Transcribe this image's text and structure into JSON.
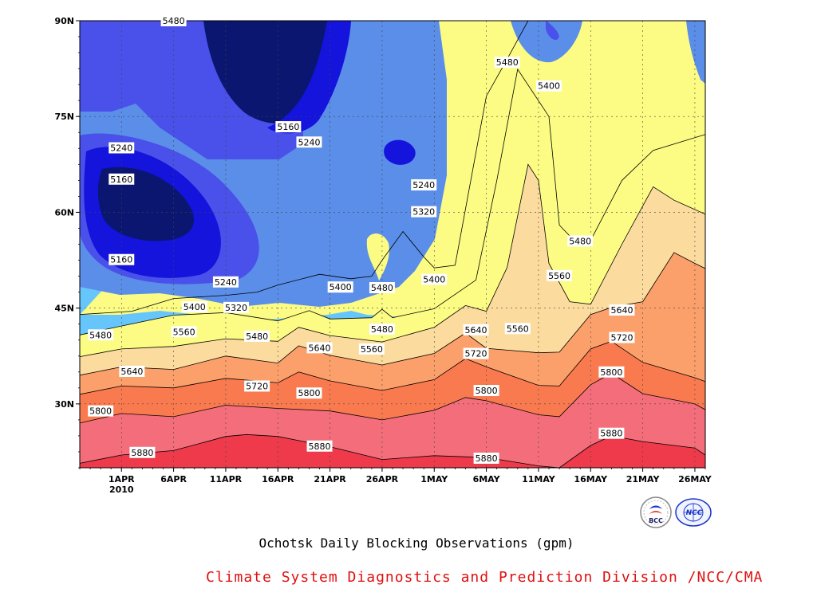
{
  "colors": {
    "bands": [
      "#ee3a4a",
      "#f46d7a",
      "#fa7a4f",
      "#fca06b",
      "#fcdc9e",
      "#fcfc84",
      "#66c6fc",
      "#5a8ee8",
      "#4a50ea",
      "#1414dc",
      "#0a1670"
    ],
    "credit": "#e01010"
  },
  "chart_data": {
    "type": "contour",
    "title": "Ochotsk Daily Blocking Observations (gpm)",
    "xlabel": "",
    "ylabel": "",
    "x_range": [
      "2010-03-28",
      "2010-05-27"
    ],
    "y_range": [
      20,
      90
    ],
    "x_ticks": [
      {
        "date": "2010-04-01",
        "label": "1APR",
        "sublabel": "2010"
      },
      {
        "date": "2010-04-06",
        "label": "6APR"
      },
      {
        "date": "2010-04-11",
        "label": "11APR"
      },
      {
        "date": "2010-04-16",
        "label": "16APR"
      },
      {
        "date": "2010-04-21",
        "label": "21APR"
      },
      {
        "date": "2010-04-26",
        "label": "26APR"
      },
      {
        "date": "2010-05-01",
        "label": "1MAY"
      },
      {
        "date": "2010-05-06",
        "label": "6MAY"
      },
      {
        "date": "2010-05-11",
        "label": "11MAY"
      },
      {
        "date": "2010-05-16",
        "label": "16MAY"
      },
      {
        "date": "2010-05-21",
        "label": "21MAY"
      },
      {
        "date": "2010-05-26",
        "label": "26MAY"
      }
    ],
    "y_ticks": [
      {
        "value": 30,
        "label": "30N"
      },
      {
        "value": 45,
        "label": "45N"
      },
      {
        "value": 60,
        "label": "60N"
      },
      {
        "value": 75,
        "label": "75N"
      },
      {
        "value": 90,
        "label": "90N"
      }
    ],
    "grid": true,
    "contour_levels": [
      5160,
      5240,
      5320,
      5400,
      5480,
      5560,
      5640,
      5720,
      5800,
      5880
    ],
    "contour_lines": [
      {
        "level": 5880,
        "points": [
          [
            "2010-03-28",
            20.7
          ],
          [
            "2010-04-01",
            22
          ],
          [
            "2010-04-06",
            22.7
          ],
          [
            "2010-04-11",
            24.9
          ],
          [
            "2010-04-13",
            25.2
          ],
          [
            "2010-04-16",
            24.9
          ],
          [
            "2010-04-21",
            23.3
          ],
          [
            "2010-04-26",
            21.3
          ],
          [
            "2010-05-01",
            21.9
          ],
          [
            "2010-05-06",
            21.6
          ],
          [
            "2010-05-11",
            20.3
          ],
          [
            "2010-05-13",
            20
          ],
          [
            "2010-05-16",
            23.5
          ],
          [
            "2010-05-18",
            25
          ],
          [
            "2010-05-21",
            24.1
          ],
          [
            "2010-05-26",
            23.1
          ],
          [
            "2010-05-27",
            22
          ]
        ]
      },
      {
        "level": 5800,
        "points": [
          [
            "2010-03-28",
            27
          ],
          [
            "2010-04-01",
            28.5
          ],
          [
            "2010-04-06",
            28
          ],
          [
            "2010-04-11",
            29.8
          ],
          [
            "2010-04-16",
            29.3
          ],
          [
            "2010-04-21",
            28.9
          ],
          [
            "2010-04-26",
            27.5
          ],
          [
            "2010-05-01",
            29
          ],
          [
            "2010-05-04",
            31
          ],
          [
            "2010-05-06",
            30.5
          ],
          [
            "2010-05-11",
            28.3
          ],
          [
            "2010-05-13",
            28
          ],
          [
            "2010-05-16",
            33
          ],
          [
            "2010-05-18",
            34.8
          ],
          [
            "2010-05-21",
            31.6
          ],
          [
            "2010-05-26",
            30
          ],
          [
            "2010-05-27",
            29.1
          ]
        ]
      },
      {
        "level": 5720,
        "points": [
          [
            "2010-03-28",
            31.5
          ],
          [
            "2010-04-01",
            32.8
          ],
          [
            "2010-04-06",
            32.5
          ],
          [
            "2010-04-11",
            34
          ],
          [
            "2010-04-16",
            33.3
          ],
          [
            "2010-04-18",
            35
          ],
          [
            "2010-04-21",
            33.6
          ],
          [
            "2010-04-26",
            32.1
          ],
          [
            "2010-05-01",
            33.8
          ],
          [
            "2010-05-04",
            37.1
          ],
          [
            "2010-05-06",
            35.8
          ],
          [
            "2010-05-11",
            32.9
          ],
          [
            "2010-05-13",
            32.8
          ],
          [
            "2010-05-16",
            38.6
          ],
          [
            "2010-05-18",
            39.8
          ],
          [
            "2010-05-21",
            36.5
          ],
          [
            "2010-05-26",
            34.1
          ],
          [
            "2010-05-27",
            33.5
          ]
        ]
      },
      {
        "level": 5640,
        "points": [
          [
            "2010-03-28",
            34.5
          ],
          [
            "2010-04-01",
            35.8
          ],
          [
            "2010-04-06",
            35.4
          ],
          [
            "2010-04-11",
            37.5
          ],
          [
            "2010-04-16",
            36.4
          ],
          [
            "2010-04-18",
            39.1
          ],
          [
            "2010-04-21",
            37.6
          ],
          [
            "2010-04-26",
            36.1
          ],
          [
            "2010-05-01",
            37.9
          ],
          [
            "2010-05-04",
            41.1
          ],
          [
            "2010-05-06",
            38.7
          ],
          [
            "2010-05-11",
            38
          ],
          [
            "2010-05-13",
            38.1
          ],
          [
            "2010-05-16",
            44
          ],
          [
            "2010-05-18",
            45.1
          ],
          [
            "2010-05-21",
            46
          ],
          [
            "2010-05-24",
            53.7
          ],
          [
            "2010-05-26",
            52
          ],
          [
            "2010-05-27",
            51.2
          ]
        ]
      },
      {
        "level": 5560,
        "points": [
          [
            "2010-03-28",
            37.4
          ],
          [
            "2010-04-01",
            38.6
          ],
          [
            "2010-04-06",
            39
          ],
          [
            "2010-04-11",
            40.2
          ],
          [
            "2010-04-16",
            39.8
          ],
          [
            "2010-04-18",
            42
          ],
          [
            "2010-04-21",
            40.7
          ],
          [
            "2010-04-26",
            39.7
          ],
          [
            "2010-05-01",
            42
          ],
          [
            "2010-05-04",
            45.4
          ],
          [
            "2010-05-06",
            44.5
          ],
          [
            "2010-05-08",
            51.4
          ],
          [
            "2010-05-10",
            67.5
          ],
          [
            "2010-05-11",
            65
          ],
          [
            "2010-05-12",
            52
          ],
          [
            "2010-05-14",
            46
          ],
          [
            "2010-05-16",
            45.6
          ],
          [
            "2010-05-19",
            55
          ],
          [
            "2010-05-22",
            64
          ],
          [
            "2010-05-24",
            61.9
          ],
          [
            "2010-05-27",
            59.7
          ]
        ]
      },
      {
        "level": 5480,
        "points": [
          [
            "2010-03-28",
            40.8
          ],
          [
            "2010-04-01",
            42.2
          ],
          [
            "2010-04-06",
            43.9
          ],
          [
            "2010-04-11",
            44.3
          ],
          [
            "2010-04-16",
            43
          ],
          [
            "2010-04-19",
            44.6
          ],
          [
            "2010-04-21",
            43.3
          ],
          [
            "2010-04-25",
            43.5
          ],
          [
            "2010-04-26",
            44.8
          ],
          [
            "2010-04-27",
            43.5
          ],
          [
            "2010-05-01",
            44.9
          ],
          [
            "2010-05-05",
            49.4
          ],
          [
            "2010-05-07",
            65
          ],
          [
            "2010-05-09",
            82.4
          ],
          [
            "2010-05-12",
            75
          ],
          [
            "2010-05-13",
            58
          ],
          [
            "2010-05-14",
            56.3
          ],
          [
            "2010-05-16",
            55.6
          ],
          [
            "2010-05-19",
            65
          ],
          [
            "2010-05-22",
            69.7
          ],
          [
            "2010-05-27",
            72.2
          ]
        ]
      },
      {
        "level": 5400,
        "points": [
          [
            "2010-03-28",
            44
          ],
          [
            "2010-04-02",
            44.5
          ],
          [
            "2010-04-06",
            46.5
          ],
          [
            "2010-04-11",
            47
          ],
          [
            "2010-04-14",
            47.5
          ],
          [
            "2010-04-16",
            48.6
          ],
          [
            "2010-04-20",
            50.3
          ],
          [
            "2010-04-23",
            49.6
          ],
          [
            "2010-04-25",
            50
          ],
          [
            "2010-04-26",
            52.5
          ],
          [
            "2010-04-28",
            57
          ],
          [
            "2010-04-30",
            53
          ],
          [
            "2010-05-01",
            51.3
          ],
          [
            "2010-05-03",
            51.7
          ],
          [
            "2010-05-06",
            78.2
          ],
          [
            "2010-05-08",
            84
          ],
          [
            "2010-05-10",
            90
          ]
        ]
      }
    ],
    "contour_labels": [
      {
        "date": "2010-04-06",
        "lat": 90,
        "label": "5480"
      },
      {
        "date": "2010-05-08",
        "lat": 83.5,
        "label": "5480"
      },
      {
        "date": "2010-05-12",
        "lat": 79.8,
        "label": "5400"
      },
      {
        "date": "2010-04-17",
        "lat": 73.4,
        "label": "5160"
      },
      {
        "date": "2010-04-19",
        "lat": 71.0,
        "label": "5240"
      },
      {
        "date": "2010-04-01",
        "lat": 70.1,
        "label": "5240"
      },
      {
        "date": "2010-04-01",
        "lat": 65.2,
        "label": "5160"
      },
      {
        "date": "2010-04-30",
        "lat": 64.3,
        "label": "5240"
      },
      {
        "date": "2010-04-30",
        "lat": 60.1,
        "label": "5320"
      },
      {
        "date": "2010-05-15",
        "lat": 55.5,
        "label": "5480"
      },
      {
        "date": "2010-05-13",
        "lat": 50.1,
        "label": "5560"
      },
      {
        "date": "2010-04-01",
        "lat": 52.6,
        "label": "5160"
      },
      {
        "date": "2010-04-11",
        "lat": 49.1,
        "label": "5240"
      },
      {
        "date": "2010-05-01",
        "lat": 49.5,
        "label": "5400"
      },
      {
        "date": "2010-04-22",
        "lat": 48.3,
        "label": "5400"
      },
      {
        "date": "2010-04-26",
        "lat": 48.2,
        "label": "5480"
      },
      {
        "date": "2010-04-08",
        "lat": 45.2,
        "label": "5400"
      },
      {
        "date": "2010-04-12",
        "lat": 45.1,
        "label": "5320"
      },
      {
        "date": "2010-05-19",
        "lat": 44.7,
        "label": "5640"
      },
      {
        "date": "2010-04-26",
        "lat": 41.7,
        "label": "5480"
      },
      {
        "date": "2010-05-05",
        "lat": 41.6,
        "label": "5640"
      },
      {
        "date": "2010-05-09",
        "lat": 41.8,
        "label": "5560"
      },
      {
        "date": "2010-04-07",
        "lat": 41.3,
        "label": "5560"
      },
      {
        "date": "2010-03-30",
        "lat": 40.8,
        "label": "5480"
      },
      {
        "date": "2010-04-14",
        "lat": 40.6,
        "label": "5480"
      },
      {
        "date": "2010-05-19",
        "lat": 40.4,
        "label": "5720"
      },
      {
        "date": "2010-04-20",
        "lat": 38.8,
        "label": "5640"
      },
      {
        "date": "2010-04-25",
        "lat": 38.6,
        "label": "5560"
      },
      {
        "date": "2010-05-05",
        "lat": 37.9,
        "label": "5720"
      },
      {
        "date": "2010-04-02",
        "lat": 35.1,
        "label": "5640"
      },
      {
        "date": "2010-05-18",
        "lat": 35.0,
        "label": "5800"
      },
      {
        "date": "2010-04-14",
        "lat": 32.8,
        "label": "5720"
      },
      {
        "date": "2010-05-06",
        "lat": 32.1,
        "label": "5800"
      },
      {
        "date": "2010-04-19",
        "lat": 31.7,
        "label": "5800"
      },
      {
        "date": "2010-03-30",
        "lat": 28.9,
        "label": "5800"
      },
      {
        "date": "2010-05-18",
        "lat": 25.4,
        "label": "5880"
      },
      {
        "date": "2010-04-20",
        "lat": 23.4,
        "label": "5880"
      },
      {
        "date": "2010-04-03",
        "lat": 22.4,
        "label": "5880"
      },
      {
        "date": "2010-05-06",
        "lat": 21.5,
        "label": "5880"
      }
    ]
  },
  "credit_text": "Climate System Diagnostics and Prediction Division /NCC/CMA",
  "logos": {
    "left_text": "BCC",
    "right_text": "NCC"
  }
}
